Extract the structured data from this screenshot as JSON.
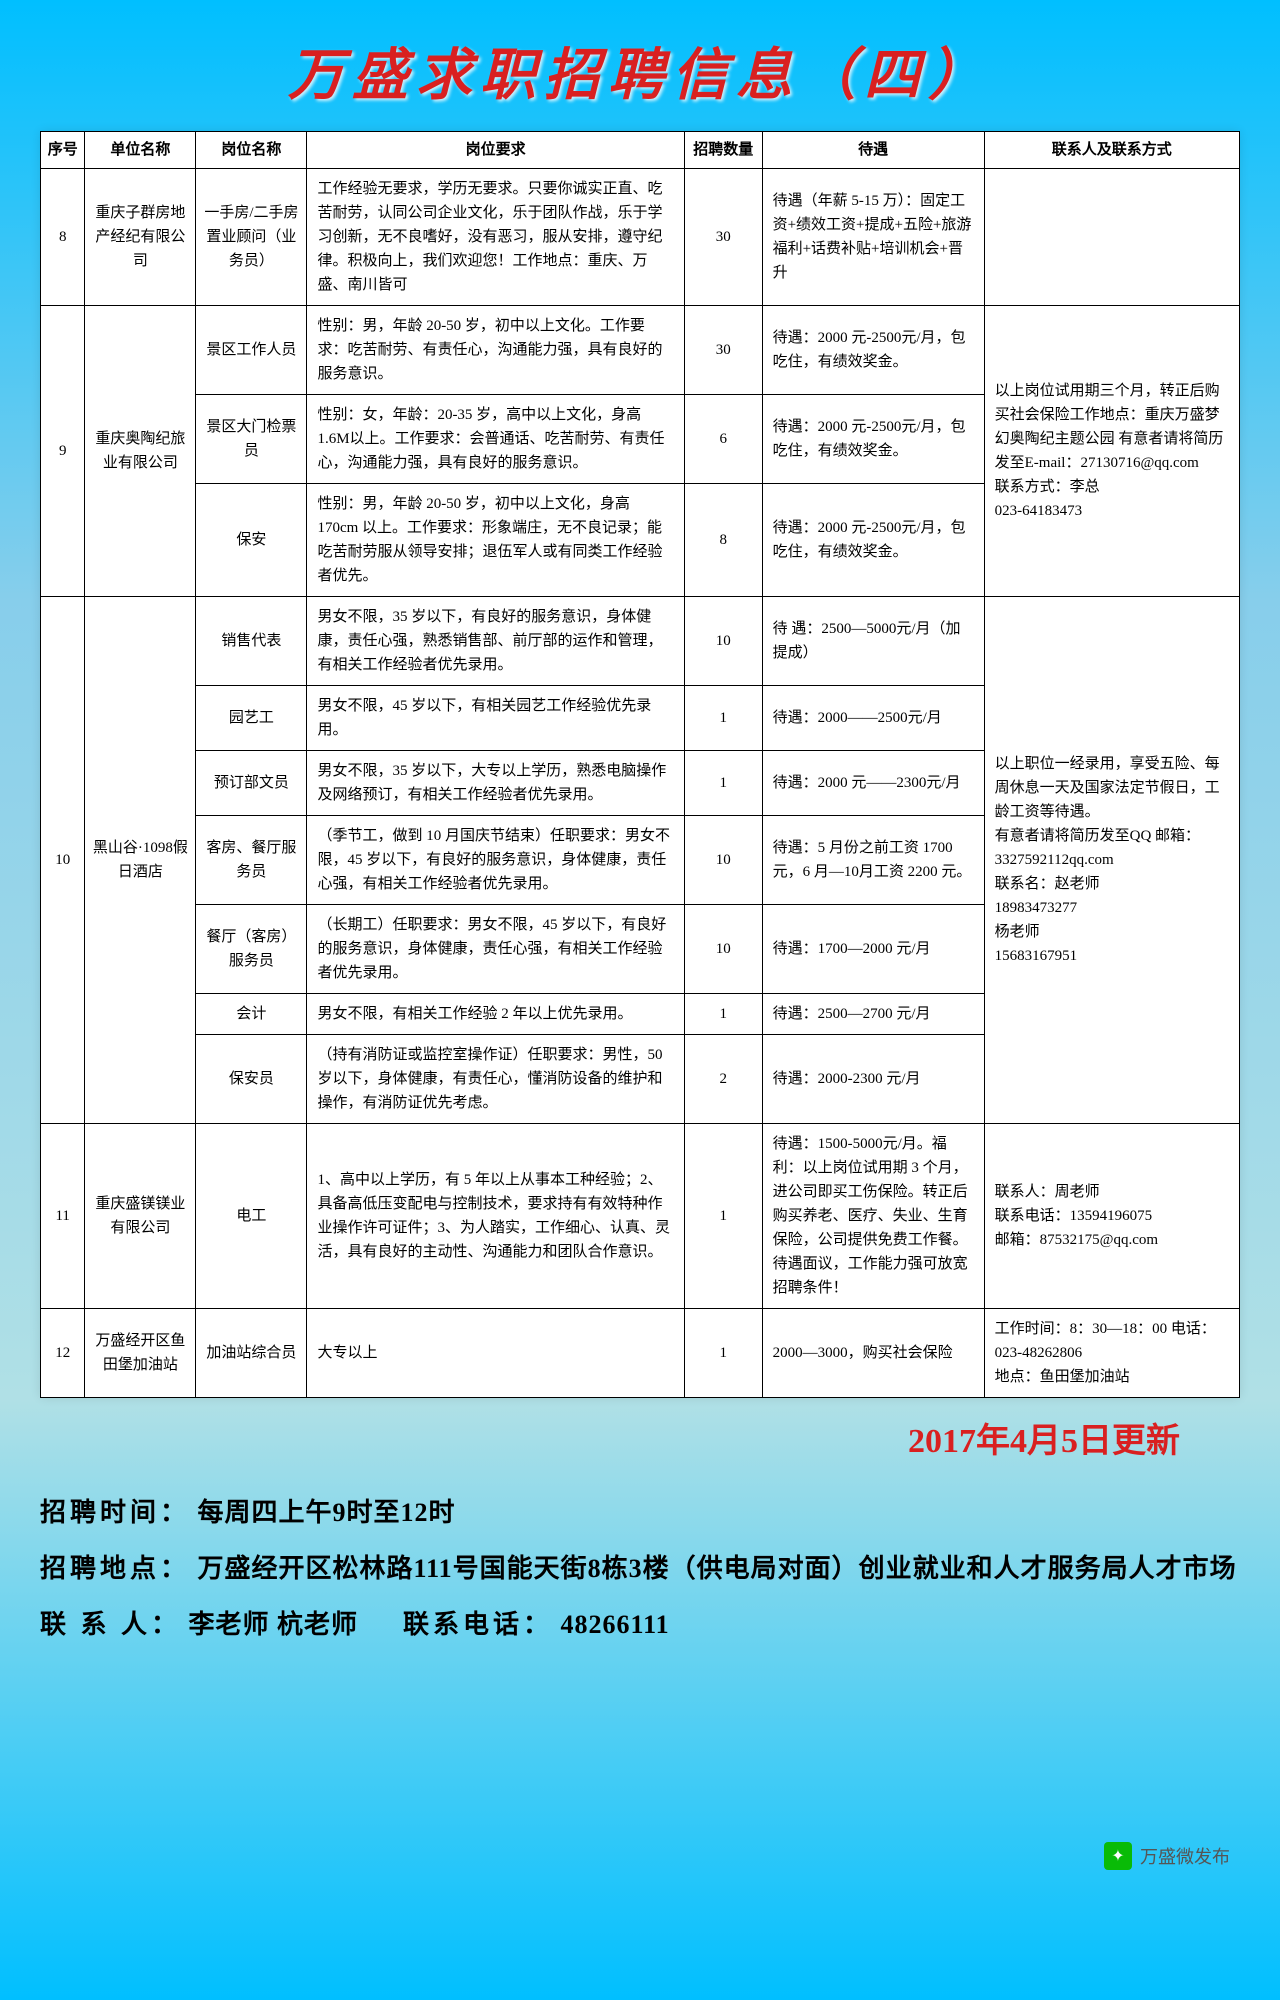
{
  "title": "万盛求职招聘信息（四）",
  "headers": {
    "seq": "序号",
    "company": "单位名称",
    "position": "岗位名称",
    "requirement": "岗位要求",
    "count": "招聘数量",
    "treatment": "待遇",
    "contact": "联系人及联系方式"
  },
  "rows": [
    {
      "seq": "8",
      "company": "重庆子群房地产经纪有限公司",
      "position": "一手房/二手房 置业顾问（业务员）",
      "requirement": "工作经验无要求，学历无要求。只要你诚实正直、吃苦耐劳，认同公司企业文化，乐于团队作战，乐于学习创新，无不良嗜好，没有恶习，服从安排，遵守纪律。积极向上，我们欢迎您！工作地点：重庆、万盛、南川皆可",
      "count": "30",
      "treatment": "待遇（年薪 5-15 万）：固定工资+绩效工资+提成+五险+旅游福利+话费补贴+培训机会+晋升",
      "contact": ""
    },
    {
      "seq": "9",
      "company": "重庆奥陶纪旅业有限公司",
      "subrows": [
        {
          "position": "景区工作人员",
          "requirement": "性别：男，年龄 20-50 岁，初中以上文化。工作要求：吃苦耐劳、有责任心，沟通能力强，具有良好的服务意识。",
          "count": "30",
          "treatment": "待遇：2000 元-2500元/月，包吃住，有绩效奖金。"
        },
        {
          "position": "景区大门检票员",
          "requirement": "性别：女，年龄：20-35 岁，高中以上文化，身高 1.6M以上。工作要求：会普通话、吃苦耐劳、有责任心，沟通能力强，具有良好的服务意识。",
          "count": "6",
          "treatment": "待遇：2000 元-2500元/月，包吃住，有绩效奖金。"
        },
        {
          "position": "保安",
          "requirement": "性别：男，年龄 20-50 岁，初中以上文化，身高 170cm 以上。工作要求：形象端庄，无不良记录；能吃苦耐劳服从领导安排；退伍军人或有同类工作经验者优先。",
          "count": "8",
          "treatment": "待遇：2000 元-2500元/月，包吃住，有绩效奖金。"
        }
      ],
      "contact": "以上岗位试用期三个月，转正后购买社会保险工作地点：重庆万盛梦幻奥陶纪主题公园 有意者请将简历发至E-mail：27130716@qq.com\n联系方式：李总\n023-64183473"
    },
    {
      "seq": "10",
      "company": "黑山谷·1098假日酒店",
      "subrows": [
        {
          "position": "销售代表",
          "requirement": "男女不限，35 岁以下，有良好的服务意识，身体健康，责任心强，熟悉销售部、前厅部的运作和管理，有相关工作经验者优先录用。",
          "count": "10",
          "treatment": "待 遇：2500—5000元/月（加提成）"
        },
        {
          "position": "园艺工",
          "requirement": "男女不限，45 岁以下，有相关园艺工作经验优先录用。",
          "count": "1",
          "treatment": "待遇：2000——2500元/月"
        },
        {
          "position": "预订部文员",
          "requirement": "男女不限，35 岁以下，大专以上学历，熟悉电脑操作及网络预订，有相关工作经验者优先录用。",
          "count": "1",
          "treatment": "待遇：2000 元——2300元/月"
        },
        {
          "position": "客房、餐厅服务员",
          "requirement": "（季节工，做到 10 月国庆节结束）任职要求：男女不限，45 岁以下，有良好的服务意识，身体健康，责任心强，有相关工作经验者优先录用。",
          "count": "10",
          "treatment": "待遇：5 月份之前工资 1700 元，6 月—10月工资 2200 元。"
        },
        {
          "position": "餐厅（客房）服务员",
          "requirement": "（长期工）任职要求：男女不限，45 岁以下，有良好的服务意识，身体健康，责任心强，有相关工作经验者优先录用。",
          "count": "10",
          "treatment": "待遇：1700—2000 元/月"
        },
        {
          "position": "会计",
          "requirement": "男女不限，有相关工作经验 2 年以上优先录用。",
          "count": "1",
          "treatment": "待遇：2500—2700 元/月"
        },
        {
          "position": "保安员",
          "requirement": "（持有消防证或监控室操作证）任职要求：男性，50 岁以下，身体健康，有责任心，懂消防设备的维护和操作，有消防证优先考虑。",
          "count": "2",
          "treatment": "待遇：2000-2300 元/月"
        }
      ],
      "contact": "以上职位一经录用，享受五险、每周休息一天及国家法定节假日，工龄工资等待遇。\n有意者请将简历发至QQ 邮箱：3327592112qq.com\n联系名：赵老师\n18983473277\n杨老师\n15683167951"
    },
    {
      "seq": "11",
      "company": "重庆盛镁镁业有限公司",
      "position": "电工",
      "requirement": "1、高中以上学历，有 5 年以上从事本工种经验；2、具备高低压变配电与控制技术，要求持有有效特种作业操作许可证件；3、为人踏实，工作细心、认真、灵活，具有良好的主动性、沟通能力和团队合作意识。",
      "count": "1",
      "treatment": "待遇：1500-5000元/月。福利：以上岗位试用期 3 个月，进公司即买工伤保险。转正后购买养老、医疗、失业、生育保险，公司提供免费工作餐。待遇面议，工作能力强可放宽招聘条件！",
      "contact": "联系人：周老师\n联系电话：13594196075\n邮箱：87532175@qq.com"
    },
    {
      "seq": "12",
      "company": "万盛经开区鱼田堡加油站",
      "position": "加油站综合员",
      "requirement": "大专以上",
      "count": "1",
      "treatment": "2000—3000，购买社会保险",
      "contact": "工作时间：8：30—18：00 电话：023-48262806\n地点：鱼田堡加油站"
    }
  ],
  "update_date": "2017年4月5日更新",
  "footer": {
    "time_label": "招聘时间：",
    "time_value": "每周四上午9时至12时",
    "addr_label": "招聘地点：",
    "addr_value": "万盛经开区松林路111号国能天街8栋3楼（供电局对面）创业就业和人才服务局人才市场",
    "contact_label": "联 系 人：",
    "contact_value": "李老师 杭老师",
    "phone_label": "联系电话：",
    "phone_value": "48266111"
  },
  "watermark": "万盛微发布"
}
